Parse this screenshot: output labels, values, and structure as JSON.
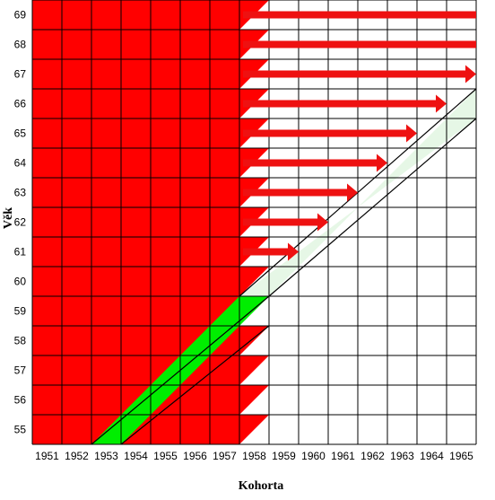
{
  "chart_data": {
    "type": "diagram",
    "xlabel": "Kohorta",
    "ylabel": "Věk",
    "x_ticks": [
      "1951",
      "1952",
      "1953",
      "1954",
      "1955",
      "1956",
      "1957",
      "1958",
      "1959",
      "1960",
      "1961",
      "1962",
      "1963",
      "1964",
      "1965"
    ],
    "y_ticks": [
      "55",
      "56",
      "57",
      "58",
      "59",
      "60",
      "61",
      "62",
      "63",
      "64",
      "65",
      "66",
      "67",
      "68",
      "69"
    ],
    "cohort_range": [
      1951,
      1965
    ],
    "age_range": [
      55,
      69
    ],
    "colors": {
      "retired": "#ff0000",
      "transition": "#00ee00",
      "new_transition": "#e6f7e6",
      "arrow": "#ee1111",
      "grid": "#000000",
      "background": "#ffffff"
    },
    "arrows": [
      {
        "age": 61,
        "to_cohort": 1960
      },
      {
        "age": 62,
        "to_cohort": 1961
      },
      {
        "age": 63,
        "to_cohort": 1962
      },
      {
        "age": 64,
        "to_cohort": 1963
      },
      {
        "age": 65,
        "to_cohort": 1964
      },
      {
        "age": 66,
        "to_cohort": 1965
      },
      {
        "age": 67,
        "to_cohort": 1966
      },
      {
        "age": 68,
        "to_cohort": 1966
      },
      {
        "age": 69,
        "to_cohort": 1966
      }
    ]
  }
}
